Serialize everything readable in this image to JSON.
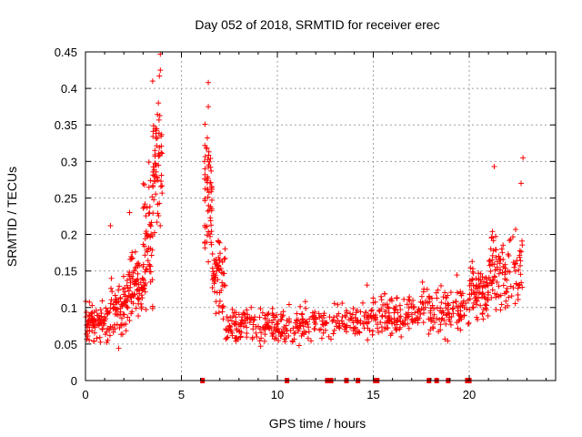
{
  "chart_data": {
    "type": "scatter",
    "title": "Day 052 of 2018, SRMTID for receiver erec",
    "xlabel": "GPS time / hours",
    "ylabel": "SRMTID / TECUs",
    "xlim": [
      0,
      24.5
    ],
    "ylim": [
      0,
      0.45
    ],
    "xticks": [
      0,
      5,
      10,
      15,
      20
    ],
    "xtick_labels": [
      "0",
      "5",
      "10",
      "15",
      "20"
    ],
    "yticks": [
      0,
      0.05,
      0.1,
      0.15,
      0.2,
      0.25,
      0.3,
      0.35,
      0.4,
      0.45
    ],
    "ytick_labels": [
      "0",
      "0.05",
      "0.1",
      "0.15",
      "0.2",
      "0.25",
      "0.3",
      "0.35",
      "0.4",
      "0.45"
    ],
    "grid": true,
    "marker": "+",
    "color": "#ff0000",
    "series": [
      {
        "name": "SRMTID",
        "segments": [
          {
            "x_start": 0.0,
            "x_end": 1.3,
            "center": 0.08,
            "spread": 0.03,
            "density": 90
          },
          {
            "x_start": 1.3,
            "x_end": 2.2,
            "center": 0.1,
            "spread": 0.04,
            "density": 70
          },
          {
            "x_start": 2.2,
            "x_end": 3.0,
            "center": 0.13,
            "spread": 0.05,
            "density": 70
          },
          {
            "x_start": 3.0,
            "x_end": 3.5,
            "center": 0.19,
            "spread": 0.08,
            "density": 60
          },
          {
            "x_start": 3.5,
            "x_end": 4.0,
            "center": 0.3,
            "spread": 0.09,
            "density": 60
          },
          {
            "x_start": 6.2,
            "x_end": 6.6,
            "center": 0.25,
            "spread": 0.1,
            "density": 60
          },
          {
            "x_start": 6.6,
            "x_end": 7.3,
            "center": 0.14,
            "spread": 0.06,
            "density": 60
          },
          {
            "x_start": 7.3,
            "x_end": 10.5,
            "center": 0.075,
            "spread": 0.025,
            "density": 160
          },
          {
            "x_start": 10.5,
            "x_end": 14.5,
            "center": 0.08,
            "spread": 0.025,
            "density": 150
          },
          {
            "x_start": 14.5,
            "x_end": 17.5,
            "center": 0.09,
            "spread": 0.03,
            "density": 150
          },
          {
            "x_start": 17.5,
            "x_end": 20.0,
            "center": 0.095,
            "spread": 0.035,
            "density": 120
          },
          {
            "x_start": 20.0,
            "x_end": 21.0,
            "center": 0.12,
            "spread": 0.04,
            "density": 80
          },
          {
            "x_start": 21.0,
            "x_end": 22.8,
            "center": 0.15,
            "spread": 0.06,
            "density": 110
          }
        ],
        "outliers": [
          {
            "x": 3.9,
            "y": 0.447
          },
          {
            "x": 3.9,
            "y": 0.425
          },
          {
            "x": 3.5,
            "y": 0.41
          },
          {
            "x": 6.4,
            "y": 0.408
          },
          {
            "x": 6.4,
            "y": 0.375
          },
          {
            "x": 3.8,
            "y": 0.38
          },
          {
            "x": 21.3,
            "y": 0.293
          },
          {
            "x": 22.8,
            "y": 0.305
          },
          {
            "x": 1.3,
            "y": 0.212
          },
          {
            "x": 2.3,
            "y": 0.23
          },
          {
            "x": 6.2,
            "y": 0.3
          },
          {
            "x": 22.7,
            "y": 0.27
          }
        ]
      }
    ],
    "zero_markers_x": [
      6.1,
      10.5,
      12.6,
      12.7,
      12.8,
      13.6,
      14.2,
      15.1,
      15.2,
      17.9,
      18.3,
      18.9,
      19.9,
      20.0
    ]
  }
}
